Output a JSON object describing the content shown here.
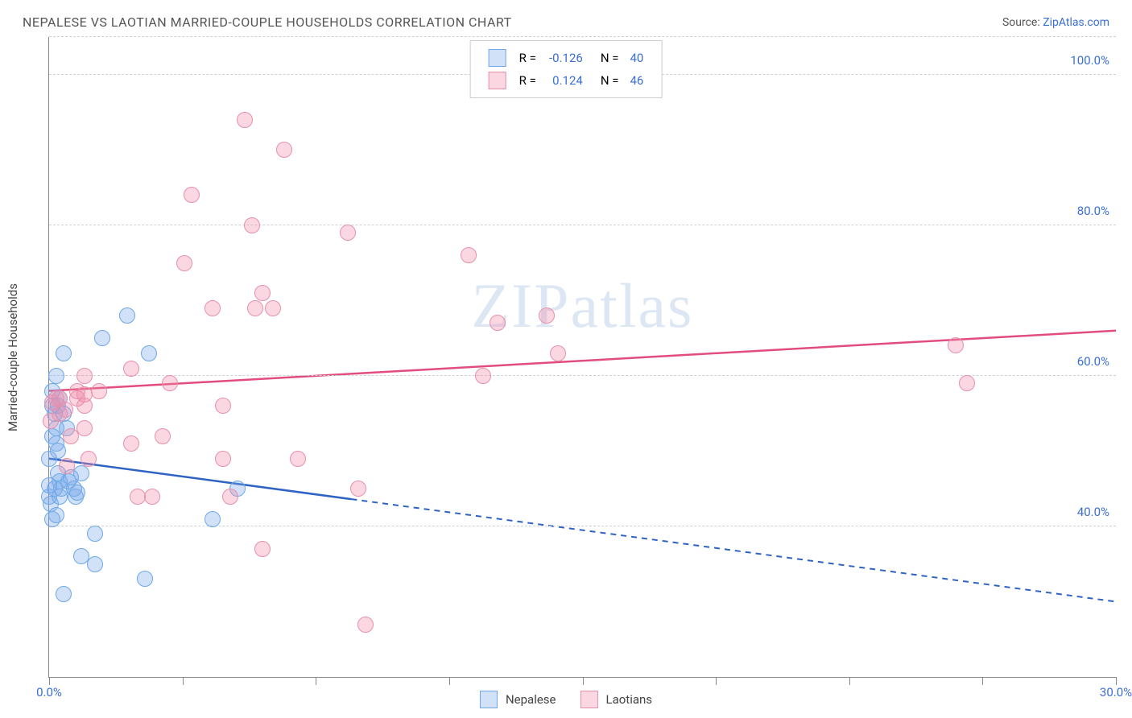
{
  "chart": {
    "type": "scatter",
    "title": "NEPALESE VS LAOTIAN MARRIED-COUPLE HOUSEHOLDS CORRELATION CHART",
    "source_label": "Source:",
    "source_name": "ZipAtlas.com",
    "ylabel": "Married-couple Households",
    "xlim": [
      0,
      30
    ],
    "ylim": [
      20,
      105
    ],
    "x_tick_start": "0.0%",
    "x_tick_end": "30.0%",
    "x_minor_ticks": [
      0,
      3.75,
      7.5,
      11.25,
      15,
      18.75,
      22.5,
      26.25,
      30
    ],
    "y_ticks": [
      {
        "v": 40,
        "label": "40.0%"
      },
      {
        "v": 60,
        "label": "60.0%"
      },
      {
        "v": 80,
        "label": "80.0%"
      },
      {
        "v": 100,
        "label": "100.0%"
      }
    ],
    "watermark": "ZIPatlas",
    "background_color": "#ffffff",
    "grid_color": "#d0d0d0",
    "axis_color": "#888888",
    "series": [
      {
        "name": "Nepalese",
        "R": "-0.126",
        "N": "40",
        "fill": "rgba(120,170,235,0.35)",
        "stroke": "#6fa8e6",
        "line_color": "#2e63c4",
        "regression": {
          "x1": 0,
          "y1": 49,
          "x2": 30,
          "y2": 30,
          "solid_until_x": 8.5
        },
        "points": [
          [
            0.1,
            56
          ],
          [
            0.15,
            55
          ],
          [
            0.2,
            53
          ],
          [
            0.2,
            51
          ],
          [
            0.25,
            50
          ],
          [
            0.25,
            47
          ],
          [
            0.3,
            46
          ],
          [
            0.3,
            44
          ],
          [
            0.35,
            45
          ],
          [
            0.0,
            49
          ],
          [
            0.15,
            45
          ],
          [
            0.25,
            56
          ],
          [
            0.3,
            57
          ],
          [
            0.05,
            43
          ],
          [
            0.0,
            44
          ],
          [
            0.0,
            45.5
          ],
          [
            0.1,
            41
          ],
          [
            0.2,
            41.5
          ],
          [
            0.4,
            55
          ],
          [
            0.5,
            53
          ],
          [
            0.55,
            46
          ],
          [
            0.6,
            46.5
          ],
          [
            0.7,
            45
          ],
          [
            0.75,
            44
          ],
          [
            0.8,
            44.5
          ],
          [
            0.9,
            47
          ],
          [
            0.4,
            63
          ],
          [
            1.5,
            65
          ],
          [
            2.2,
            68
          ],
          [
            2.8,
            63
          ],
          [
            0.9,
            36
          ],
          [
            1.3,
            39
          ],
          [
            1.3,
            35
          ],
          [
            2.7,
            33
          ],
          [
            0.4,
            31
          ],
          [
            4.6,
            41
          ],
          [
            0.2,
            60
          ],
          [
            5.3,
            45
          ],
          [
            0.1,
            58
          ],
          [
            0.1,
            52
          ]
        ]
      },
      {
        "name": "Laotians",
        "R": "0.124",
        "N": "46",
        "fill": "rgba(240,140,170,0.35)",
        "stroke": "#e690ae",
        "line_color": "#e24d7e",
        "regression": {
          "x1": 0,
          "y1": 58,
          "x2": 30,
          "y2": 66,
          "solid_until_x": 30
        },
        "points": [
          [
            5.5,
            94
          ],
          [
            4.0,
            84
          ],
          [
            3.8,
            75
          ],
          [
            6.6,
            90
          ],
          [
            5.7,
            80
          ],
          [
            8.4,
            79
          ],
          [
            6.0,
            71
          ],
          [
            4.6,
            69
          ],
          [
            5.8,
            69
          ],
          [
            6.3,
            69
          ],
          [
            2.3,
            61
          ],
          [
            3.4,
            59
          ],
          [
            4.9,
            56
          ],
          [
            4.9,
            49
          ],
          [
            7.0,
            49
          ],
          [
            8.7,
            45
          ],
          [
            12.6,
            67
          ],
          [
            14.0,
            68
          ],
          [
            11.8,
            76
          ],
          [
            2.5,
            44
          ],
          [
            2.9,
            44
          ],
          [
            5.1,
            44
          ],
          [
            6.0,
            37
          ],
          [
            8.9,
            27
          ],
          [
            1.4,
            58
          ],
          [
            1.0,
            57.5
          ],
          [
            0.3,
            57
          ],
          [
            0.2,
            57
          ],
          [
            0.3,
            55
          ],
          [
            0.45,
            55.5
          ],
          [
            0.6,
            52
          ],
          [
            0.8,
            57
          ],
          [
            0.8,
            58
          ],
          [
            1.0,
            56
          ],
          [
            1.0,
            53
          ],
          [
            1.1,
            49
          ],
          [
            2.3,
            51
          ],
          [
            3.2,
            52
          ],
          [
            12.2,
            60
          ],
          [
            14.3,
            63
          ],
          [
            25.5,
            64
          ],
          [
            25.8,
            59
          ],
          [
            1.0,
            60
          ],
          [
            0.05,
            54
          ],
          [
            0.5,
            48
          ],
          [
            0.1,
            56.5
          ]
        ]
      }
    ],
    "legend_labels": {
      "R": "R =",
      "N": "N ="
    }
  }
}
